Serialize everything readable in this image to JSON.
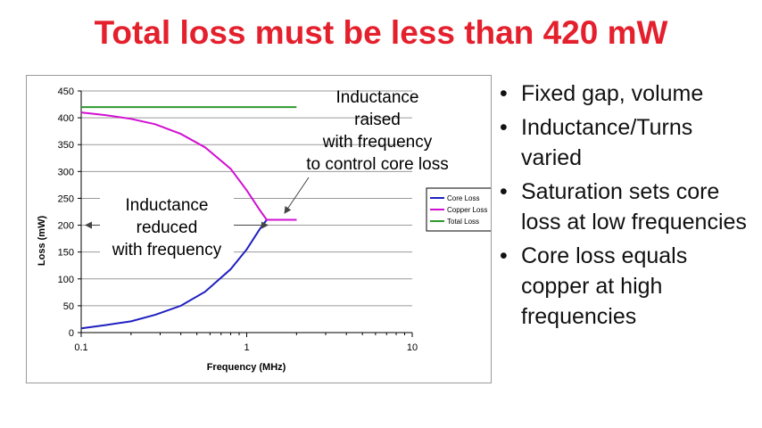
{
  "slide": {
    "title": "Total loss must be less than 420 mW",
    "title_color": "#e4202d"
  },
  "annotations": {
    "raised": [
      "Inductance",
      "raised",
      "with frequency",
      "to control core loss"
    ],
    "reduced": [
      "Inductance",
      "reduced",
      "with frequency"
    ]
  },
  "bullets": [
    {
      "marker": "•",
      "text": "Fixed gap, volume"
    },
    {
      "marker": "•",
      "text": "Inductance/Turns varied"
    },
    {
      "marker": "•",
      "text": "Saturation sets core loss at low frequencies"
    },
    {
      "marker": "•",
      "text": "Core loss equals copper at high frequencies"
    }
  ],
  "chart_data": {
    "type": "line",
    "xlabel": "Frequency (MHz)",
    "ylabel": "Loss (mW)",
    "xscale": "log",
    "xlim": [
      0.1,
      10
    ],
    "ylim": [
      0,
      450
    ],
    "xticks": [
      0.1,
      1,
      10
    ],
    "xtick_labels": [
      "0.1",
      "1",
      "10"
    ],
    "yticks": [
      0,
      50,
      100,
      150,
      200,
      250,
      300,
      350,
      400,
      450
    ],
    "ytick_labels": [
      "0",
      "50",
      "100",
      "150",
      "200",
      "250",
      "300",
      "350",
      "400",
      "450"
    ],
    "grid": "horizontal",
    "legend_position": "right",
    "series": [
      {
        "name": "Core Loss",
        "color": "#1f1fc0",
        "x": [
          0.1,
          0.14,
          0.2,
          0.28,
          0.4,
          0.56,
          0.8,
          1.0,
          1.2,
          1.32,
          1.6,
          2.0
        ],
        "y": [
          8,
          14,
          21,
          33,
          50,
          76,
          118,
          155,
          193,
          210,
          210,
          210
        ]
      },
      {
        "name": "Copper Loss",
        "color": "#d10fd1",
        "x": [
          0.1,
          0.14,
          0.2,
          0.28,
          0.4,
          0.56,
          0.8,
          1.0,
          1.2,
          1.32,
          1.6,
          2.0
        ],
        "y": [
          410,
          405,
          398,
          388,
          370,
          345,
          305,
          265,
          228,
          210,
          210,
          210
        ]
      },
      {
        "name": "Total Loss",
        "color": "#2e9a2e",
        "x": [
          0.1,
          2.0
        ],
        "y": [
          420,
          420
        ]
      }
    ]
  }
}
